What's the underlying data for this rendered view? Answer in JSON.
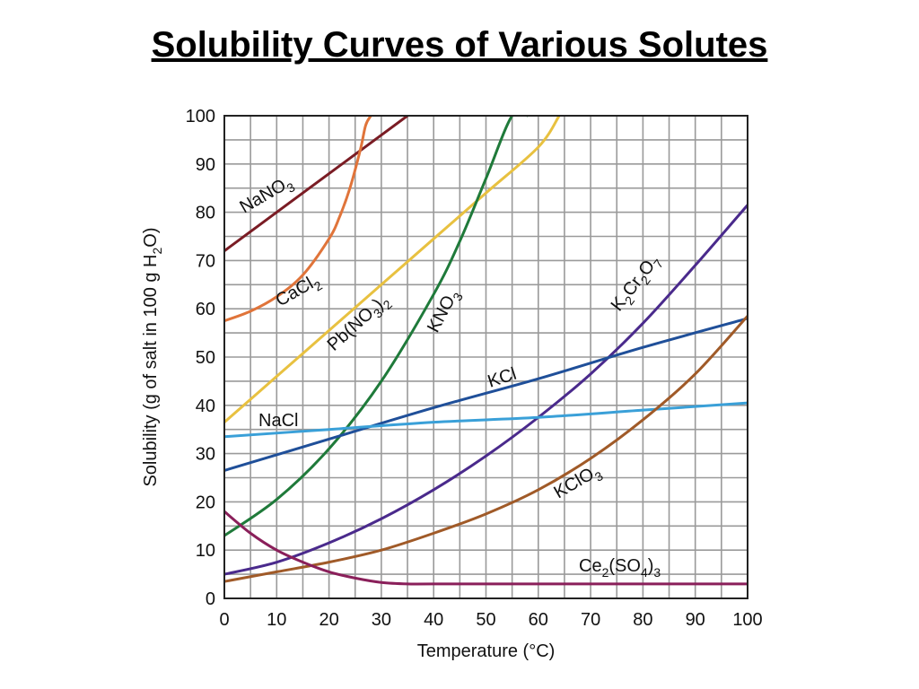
{
  "page": {
    "title": "Solubility Curves of Various Solutes"
  },
  "chart_data": {
    "type": "line",
    "title": "Solubility Curves of Various Solutes",
    "xlabel": "Temperature (°C)",
    "ylabel": "Solubility (g of salt in 100 g H2O)",
    "xlim": [
      0,
      100
    ],
    "ylim": [
      0,
      100
    ],
    "xticks": [
      0,
      10,
      20,
      30,
      40,
      50,
      60,
      70,
      80,
      90,
      100
    ],
    "yticks": [
      0,
      10,
      20,
      30,
      40,
      50,
      60,
      70,
      80,
      90,
      100
    ],
    "grid": true,
    "legend": "none (series labeled directly on curves)",
    "series": [
      {
        "name": "NaNO3",
        "color": "#7a1c24",
        "x": [
          0,
          10,
          20,
          30,
          35
        ],
        "y": [
          72,
          80,
          88,
          96,
          100
        ]
      },
      {
        "name": "CaCl2",
        "color": "#e0743a",
        "x": [
          0,
          5,
          10,
          15,
          20,
          22,
          24,
          26,
          27,
          28
        ],
        "y": [
          57.5,
          59.5,
          62.5,
          67,
          74.5,
          79,
          85,
          93,
          98,
          100
        ]
      },
      {
        "name": "Pb(NO3)2",
        "color": "#e8c140",
        "x": [
          0,
          10,
          20,
          30,
          40,
          50,
          60,
          64
        ],
        "y": [
          36.5,
          46,
          55.5,
          65,
          74.5,
          84,
          93.5,
          100
        ]
      },
      {
        "name": "KNO3",
        "color": "#1f7a3a",
        "x": [
          0,
          10,
          20,
          30,
          40,
          45,
          50,
          55,
          58
        ],
        "y": [
          13,
          20.5,
          31,
          45,
          63,
          74,
          87,
          100,
          100
        ]
      },
      {
        "name": "K2Cr2O7",
        "color": "#4a2a8c",
        "x": [
          0,
          10,
          20,
          30,
          40,
          50,
          60,
          70,
          80,
          90,
          100
        ],
        "y": [
          5,
          7.5,
          11.5,
          16.5,
          22.5,
          29.5,
          37.5,
          46.5,
          57,
          69,
          81.5
        ]
      },
      {
        "name": "KCl",
        "color": "#1f4f99",
        "x": [
          0,
          20,
          40,
          60,
          80,
          100
        ],
        "y": [
          26.5,
          33,
          39.5,
          45.5,
          52,
          58
        ]
      },
      {
        "name": "NaCl",
        "color": "#3aa0d8",
        "x": [
          0,
          20,
          40,
          60,
          80,
          100
        ],
        "y": [
          33.5,
          35,
          36.5,
          37.5,
          39,
          40.5
        ]
      },
      {
        "name": "KClO3",
        "color": "#a05a28",
        "x": [
          0,
          10,
          20,
          30,
          40,
          50,
          60,
          70,
          80,
          90,
          100
        ],
        "y": [
          3.5,
          5.5,
          7.5,
          10,
          13.5,
          17.5,
          22.5,
          29,
          37,
          46.5,
          58.5
        ]
      },
      {
        "name": "Ce2(SO4)3",
        "color": "#8a1f5a",
        "x": [
          0,
          5,
          10,
          15,
          20,
          25,
          30,
          35,
          40,
          60,
          80,
          100
        ],
        "y": [
          18,
          13.5,
          10,
          7.5,
          5.5,
          4.2,
          3.3,
          3,
          3,
          3,
          3,
          3
        ]
      }
    ],
    "labels": [
      {
        "series": "NaNO3",
        "text": "NaNO",
        "sub": "3"
      },
      {
        "series": "CaCl2",
        "text": "CaCl",
        "sub": "2"
      },
      {
        "series": "Pb(NO3)2",
        "text": "Pb(NO",
        "sub": "3",
        "tail": ")",
        "sub2": "2"
      },
      {
        "series": "KNO3",
        "text": "KNO",
        "sub": "3"
      },
      {
        "series": "K2Cr2O7",
        "text": "K",
        "sub": "2",
        "tail": "Cr",
        "sub2": "2",
        "tail2": "O",
        "sub3": "7"
      },
      {
        "series": "KCl",
        "text": "KCl"
      },
      {
        "series": "NaCl",
        "text": "NaCl"
      },
      {
        "series": "KClO3",
        "text": "KClO",
        "sub": "3"
      },
      {
        "series": "Ce2(SO4)3",
        "text": "Ce",
        "sub": "2",
        "tail": "(SO",
        "sub2": "4",
        "tail2": ")",
        "sub3": "3"
      }
    ]
  }
}
